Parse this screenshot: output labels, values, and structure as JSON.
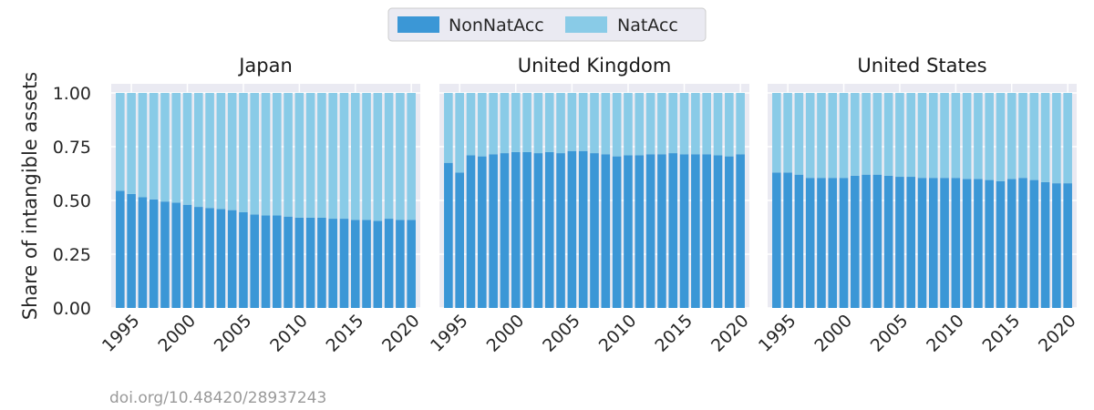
{
  "chart_data": {
    "type": "bar",
    "stacked": true,
    "ylabel": "Share of intangible assets",
    "ylim": [
      0,
      1
    ],
    "yticks": [
      "0.00",
      "0.25",
      "0.50",
      "0.75",
      "1.00"
    ],
    "x": [
      1994,
      1995,
      1996,
      1997,
      1998,
      1999,
      2000,
      2001,
      2002,
      2003,
      2004,
      2005,
      2006,
      2007,
      2008,
      2009,
      2010,
      2011,
      2012,
      2013,
      2014,
      2015,
      2016,
      2017,
      2018,
      2019,
      2020
    ],
    "xticks": [
      "1995",
      "2000",
      "2005",
      "2010",
      "2015",
      "2020"
    ],
    "legend": {
      "placement": "top-center",
      "entries": [
        "NonNatAcc",
        "NatAcc"
      ]
    },
    "colors": {
      "NonNatAcc": "#3b97d6",
      "NatAcc": "#89cbe7",
      "background": "#eaeaf2",
      "grid": "#ffffff"
    },
    "grid": true,
    "panels": [
      {
        "title": "Japan",
        "series": [
          {
            "name": "NonNatAcc",
            "values": [
              0.545,
              0.53,
              0.515,
              0.505,
              0.495,
              0.49,
              0.48,
              0.47,
              0.465,
              0.46,
              0.455,
              0.445,
              0.435,
              0.43,
              0.43,
              0.425,
              0.42,
              0.42,
              0.42,
              0.415,
              0.415,
              0.41,
              0.41,
              0.405,
              0.415,
              0.41,
              0.41
            ]
          },
          {
            "name": "NatAcc",
            "values": [
              0.455,
              0.47,
              0.485,
              0.495,
              0.505,
              0.51,
              0.52,
              0.53,
              0.535,
              0.54,
              0.545,
              0.555,
              0.565,
              0.57,
              0.57,
              0.575,
              0.58,
              0.58,
              0.58,
              0.585,
              0.585,
              0.59,
              0.59,
              0.595,
              0.585,
              0.59,
              0.59
            ]
          }
        ]
      },
      {
        "title": "United Kingdom",
        "series": [
          {
            "name": "NonNatAcc",
            "values": [
              0.675,
              0.63,
              0.71,
              0.705,
              0.715,
              0.72,
              0.725,
              0.725,
              0.72,
              0.725,
              0.72,
              0.73,
              0.73,
              0.72,
              0.715,
              0.705,
              0.71,
              0.71,
              0.715,
              0.715,
              0.72,
              0.715,
              0.715,
              0.715,
              0.71,
              0.705,
              0.715
            ]
          },
          {
            "name": "NatAcc",
            "values": [
              0.325,
              0.37,
              0.29,
              0.295,
              0.285,
              0.28,
              0.275,
              0.275,
              0.28,
              0.275,
              0.28,
              0.27,
              0.27,
              0.28,
              0.285,
              0.295,
              0.29,
              0.29,
              0.285,
              0.285,
              0.28,
              0.285,
              0.285,
              0.285,
              0.29,
              0.295,
              0.285
            ]
          }
        ]
      },
      {
        "title": "United States",
        "series": [
          {
            "name": "NonNatAcc",
            "values": [
              0.63,
              0.63,
              0.62,
              0.605,
              0.605,
              0.605,
              0.605,
              0.615,
              0.62,
              0.62,
              0.615,
              0.61,
              0.61,
              0.605,
              0.605,
              0.605,
              0.605,
              0.6,
              0.6,
              0.595,
              0.59,
              0.6,
              0.605,
              0.595,
              0.585,
              0.58,
              0.58
            ]
          },
          {
            "name": "NatAcc",
            "values": [
              0.37,
              0.37,
              0.38,
              0.395,
              0.395,
              0.395,
              0.395,
              0.385,
              0.38,
              0.38,
              0.385,
              0.39,
              0.39,
              0.395,
              0.395,
              0.395,
              0.395,
              0.4,
              0.4,
              0.405,
              0.41,
              0.4,
              0.395,
              0.405,
              0.415,
              0.42,
              0.42
            ]
          }
        ]
      }
    ]
  },
  "footer": {
    "doi": "doi.org/10.48420/28937243"
  }
}
